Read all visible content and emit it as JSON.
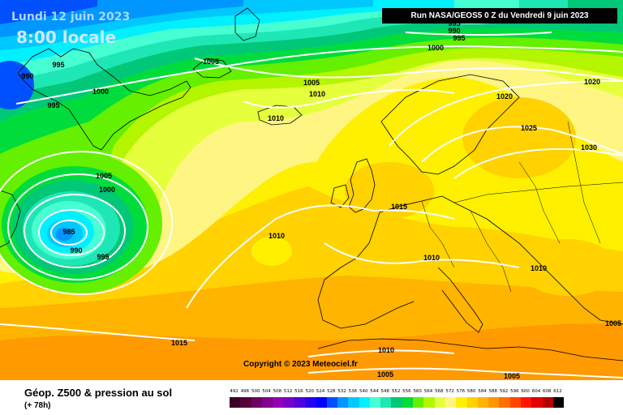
{
  "header": {
    "date_label": "Lundi 12 juin 2023",
    "time_label": "8:00 locale",
    "run_label": "Run NASA/GEOS5 0 Z du Vendredi 9 juin 2023"
  },
  "map": {
    "copyright": "Copyright © 2023 Meteociel.fr",
    "isobar_labels": [
      {
        "text": "995"
      },
      {
        "text": "990"
      },
      {
        "text": "995"
      },
      {
        "text": "1000"
      },
      {
        "text": "995"
      },
      {
        "text": "990"
      },
      {
        "text": "995"
      },
      {
        "text": "1005"
      },
      {
        "text": "1000"
      },
      {
        "text": "1005"
      },
      {
        "text": "1010"
      },
      {
        "text": "1010"
      },
      {
        "text": "1020"
      },
      {
        "text": "1020"
      },
      {
        "text": "1025"
      },
      {
        "text": "1030"
      },
      {
        "text": "1005"
      },
      {
        "text": "1000"
      },
      {
        "text": "985"
      },
      {
        "text": "990"
      },
      {
        "text": "995"
      },
      {
        "text": "1010"
      },
      {
        "text": "1015"
      },
      {
        "text": "1010"
      },
      {
        "text": "1010"
      },
      {
        "text": "1015"
      },
      {
        "text": "1010"
      },
      {
        "text": "1005"
      },
      {
        "text": "1005"
      },
      {
        "text": "1005"
      }
    ]
  },
  "legend": {
    "title": "Géop. Z500 & pression au sol",
    "subtitle": "(+ 78h)",
    "scale": [
      {
        "label": "492",
        "color": "#3c0028"
      },
      {
        "label": "496",
        "color": "#55003c"
      },
      {
        "label": "500",
        "color": "#6e0064"
      },
      {
        "label": "504",
        "color": "#82008c"
      },
      {
        "label": "508",
        "color": "#9600b4"
      },
      {
        "label": "512",
        "color": "#7800c8"
      },
      {
        "label": "516",
        "color": "#5000dc"
      },
      {
        "label": "520",
        "color": "#2800f0"
      },
      {
        "label": "524",
        "color": "#0000ff"
      },
      {
        "label": "528",
        "color": "#0050ff"
      },
      {
        "label": "532",
        "color": "#0096ff"
      },
      {
        "label": "536",
        "color": "#00c8ff"
      },
      {
        "label": "540",
        "color": "#00f0ff"
      },
      {
        "label": "544",
        "color": "#46ffd2"
      },
      {
        "label": "548",
        "color": "#1ee6b4"
      },
      {
        "label": "552",
        "color": "#00c878"
      },
      {
        "label": "556",
        "color": "#00dc3c"
      },
      {
        "label": "560",
        "color": "#64f000"
      },
      {
        "label": "564",
        "color": "#b4f500"
      },
      {
        "label": "568",
        "color": "#e6ff3c"
      },
      {
        "label": "572",
        "color": "#fff582"
      },
      {
        "label": "576",
        "color": "#fff000"
      },
      {
        "label": "580",
        "color": "#ffd200"
      },
      {
        "label": "584",
        "color": "#ffb400"
      },
      {
        "label": "588",
        "color": "#ff9600"
      },
      {
        "label": "592",
        "color": "#ff6e00"
      },
      {
        "label": "596",
        "color": "#ff4600"
      },
      {
        "label": "600",
        "color": "#ff1400"
      },
      {
        "label": "604",
        "color": "#e10000"
      },
      {
        "label": "608",
        "color": "#b40000"
      },
      {
        "label": "612",
        "color": "#000000"
      }
    ]
  }
}
